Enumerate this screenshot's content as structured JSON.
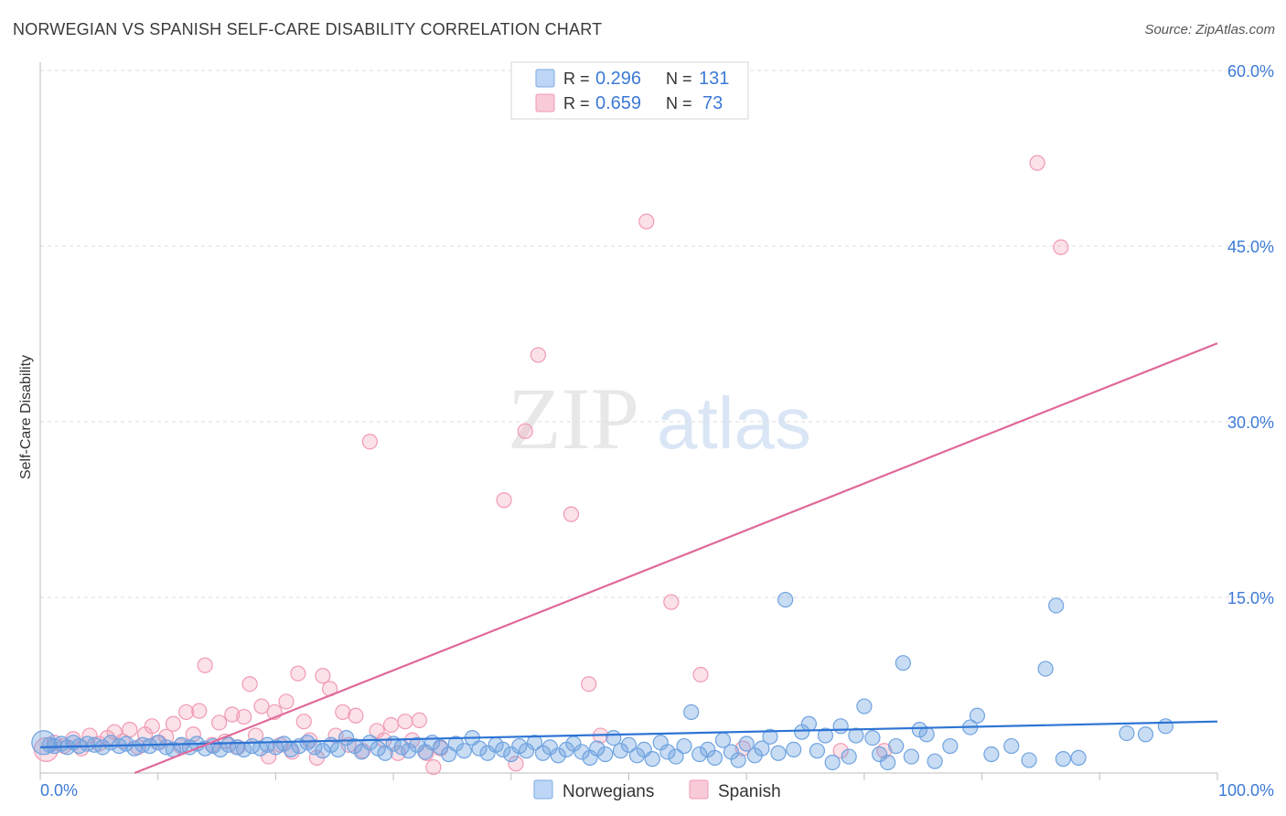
{
  "chart_data": {
    "type": "scatter",
    "title": "NORWEGIAN VS SPANISH SELF-CARE DISABILITY CORRELATION CHART",
    "source": "Source: ZipAtlas.com",
    "xlabel": "",
    "ylabel": "Self-Care Disability",
    "xlim": [
      0,
      100
    ],
    "ylim": [
      0,
      60
    ],
    "x_tick_labels": [
      "0.0%",
      "100.0%"
    ],
    "y_ticks": [
      15,
      30,
      45,
      60
    ],
    "y_tick_labels": [
      "15.0%",
      "30.0%",
      "45.0%",
      "60.0%"
    ],
    "watermark": {
      "zip": "ZIP",
      "atlas": "atlas"
    },
    "legend": [
      {
        "r_label": "R =",
        "r_value": "0.296",
        "n_label": "N =",
        "n_value": "131"
      },
      {
        "r_label": "R =",
        "r_value": "0.659",
        "n_label": "N =",
        "n_value": "73"
      }
    ],
    "colors": {
      "norwegians": "#6fa3e0",
      "spanish": "#f19ab3",
      "norwegians_line": "#2d74d4",
      "spanish_line": "#e0699a",
      "tick_text": "#3d7ad6"
    },
    "series": [
      {
        "name": "Norwegians",
        "trend": {
          "x": [
            0,
            100
          ],
          "y": [
            2.2,
            4.4
          ]
        },
        "points": [
          [
            0.3,
            2.6
          ],
          [
            0.8,
            2.4
          ],
          [
            1.2,
            2.3
          ],
          [
            1.8,
            2.5
          ],
          [
            2.3,
            2.2
          ],
          [
            2.8,
            2.6
          ],
          [
            3.3,
            2.3
          ],
          [
            4.0,
            2.5
          ],
          [
            4.6,
            2.4
          ],
          [
            5.3,
            2.2
          ],
          [
            6.0,
            2.6
          ],
          [
            6.7,
            2.3
          ],
          [
            7.3,
            2.5
          ],
          [
            8.0,
            2.1
          ],
          [
            8.7,
            2.4
          ],
          [
            9.3,
            2.3
          ],
          [
            10.0,
            2.6
          ],
          [
            10.7,
            2.2
          ],
          [
            11.3,
            2.0
          ],
          [
            12.0,
            2.4
          ],
          [
            12.7,
            2.2
          ],
          [
            13.3,
            2.5
          ],
          [
            14.0,
            2.1
          ],
          [
            14.7,
            2.3
          ],
          [
            15.3,
            2.0
          ],
          [
            16.0,
            2.4
          ],
          [
            16.7,
            2.2
          ],
          [
            17.3,
            2.0
          ],
          [
            18.0,
            2.3
          ],
          [
            18.7,
            2.1
          ],
          [
            19.3,
            2.4
          ],
          [
            20.0,
            2.2
          ],
          [
            20.7,
            2.5
          ],
          [
            21.3,
            2.0
          ],
          [
            22.0,
            2.3
          ],
          [
            22.7,
            2.6
          ],
          [
            23.3,
            2.2
          ],
          [
            24.0,
            1.9
          ],
          [
            24.7,
            2.4
          ],
          [
            25.3,
            2.0
          ],
          [
            26.0,
            3.0
          ],
          [
            26.7,
            2.3
          ],
          [
            27.3,
            1.8
          ],
          [
            28.0,
            2.6
          ],
          [
            28.7,
            2.1
          ],
          [
            29.3,
            1.7
          ],
          [
            30.0,
            2.5
          ],
          [
            30.7,
            2.2
          ],
          [
            31.3,
            1.9
          ],
          [
            32.0,
            2.4
          ],
          [
            32.7,
            1.8
          ],
          [
            33.3,
            2.6
          ],
          [
            34.0,
            2.2
          ],
          [
            34.7,
            1.6
          ],
          [
            35.3,
            2.5
          ],
          [
            36.0,
            1.9
          ],
          [
            36.7,
            3.0
          ],
          [
            37.3,
            2.1
          ],
          [
            38.0,
            1.7
          ],
          [
            38.7,
            2.4
          ],
          [
            39.3,
            2.0
          ],
          [
            40.0,
            1.6
          ],
          [
            40.7,
            2.3
          ],
          [
            41.3,
            1.9
          ],
          [
            42.0,
            2.6
          ],
          [
            42.7,
            1.7
          ],
          [
            43.3,
            2.2
          ],
          [
            44.0,
            1.5
          ],
          [
            44.7,
            2.0
          ],
          [
            45.3,
            2.5
          ],
          [
            46.0,
            1.8
          ],
          [
            46.7,
            1.3
          ],
          [
            47.3,
            2.1
          ],
          [
            48.0,
            1.6
          ],
          [
            48.7,
            3.0
          ],
          [
            49.3,
            1.9
          ],
          [
            50.0,
            2.4
          ],
          [
            50.7,
            1.5
          ],
          [
            51.3,
            2.0
          ],
          [
            52.0,
            1.2
          ],
          [
            52.7,
            2.6
          ],
          [
            53.3,
            1.8
          ],
          [
            54.0,
            1.4
          ],
          [
            54.7,
            2.3
          ],
          [
            55.3,
            5.2
          ],
          [
            56.0,
            1.6
          ],
          [
            56.7,
            2.0
          ],
          [
            57.3,
            1.3
          ],
          [
            58.0,
            2.8
          ],
          [
            58.7,
            1.8
          ],
          [
            59.3,
            1.1
          ],
          [
            60.0,
            2.5
          ],
          [
            60.7,
            1.5
          ],
          [
            61.3,
            2.1
          ],
          [
            62.0,
            3.1
          ],
          [
            62.7,
            1.7
          ],
          [
            63.3,
            14.8
          ],
          [
            64.0,
            2.0
          ],
          [
            64.7,
            3.5
          ],
          [
            65.3,
            4.2
          ],
          [
            66.0,
            1.9
          ],
          [
            66.7,
            3.2
          ],
          [
            67.3,
            0.9
          ],
          [
            68.0,
            4.0
          ],
          [
            68.7,
            1.4
          ],
          [
            69.3,
            3.2
          ],
          [
            70.0,
            5.7
          ],
          [
            70.7,
            3.0
          ],
          [
            71.3,
            1.6
          ],
          [
            72.0,
            0.9
          ],
          [
            72.7,
            2.3
          ],
          [
            73.3,
            9.4
          ],
          [
            74.0,
            1.4
          ],
          [
            74.7,
            3.7
          ],
          [
            75.3,
            3.3
          ],
          [
            76.0,
            1.0
          ],
          [
            77.3,
            2.3
          ],
          [
            79.0,
            3.9
          ],
          [
            79.6,
            4.9
          ],
          [
            80.8,
            1.6
          ],
          [
            82.5,
            2.3
          ],
          [
            84.0,
            1.1
          ],
          [
            85.4,
            8.9
          ],
          [
            86.3,
            14.3
          ],
          [
            86.9,
            1.2
          ],
          [
            88.2,
            1.3
          ],
          [
            92.3,
            3.4
          ],
          [
            93.9,
            3.3
          ],
          [
            95.6,
            4.0
          ]
        ]
      },
      {
        "name": "Spanish",
        "trend": {
          "x": [
            0,
            100
          ],
          "y": [
            -3.2,
            36.7
          ]
        },
        "points": [
          [
            0.5,
            2.0
          ],
          [
            1.2,
            2.6
          ],
          [
            2.0,
            2.3
          ],
          [
            2.8,
            2.9
          ],
          [
            3.5,
            2.1
          ],
          [
            4.2,
            3.2
          ],
          [
            5.0,
            2.5
          ],
          [
            5.7,
            3.0
          ],
          [
            6.3,
            3.5
          ],
          [
            7.0,
            2.7
          ],
          [
            7.6,
            3.7
          ],
          [
            8.3,
            2.2
          ],
          [
            8.9,
            3.3
          ],
          [
            9.5,
            4.0
          ],
          [
            10.1,
            2.6
          ],
          [
            10.7,
            3.1
          ],
          [
            11.3,
            4.2
          ],
          [
            11.9,
            2.3
          ],
          [
            12.4,
            5.2
          ],
          [
            13.0,
            3.3
          ],
          [
            13.5,
            5.3
          ],
          [
            14.0,
            9.2
          ],
          [
            14.6,
            2.4
          ],
          [
            15.2,
            4.3
          ],
          [
            15.7,
            2.7
          ],
          [
            16.3,
            5.0
          ],
          [
            16.8,
            2.2
          ],
          [
            17.3,
            4.8
          ],
          [
            17.8,
            7.6
          ],
          [
            18.3,
            3.2
          ],
          [
            18.8,
            5.7
          ],
          [
            19.4,
            1.4
          ],
          [
            19.9,
            5.2
          ],
          [
            20.4,
            2.4
          ],
          [
            20.9,
            6.1
          ],
          [
            21.4,
            1.8
          ],
          [
            21.9,
            8.5
          ],
          [
            22.4,
            4.4
          ],
          [
            22.9,
            2.8
          ],
          [
            23.5,
            1.3
          ],
          [
            24.0,
            8.3
          ],
          [
            24.6,
            7.2
          ],
          [
            25.1,
            3.2
          ],
          [
            25.7,
            5.2
          ],
          [
            26.2,
            2.4
          ],
          [
            26.8,
            4.9
          ],
          [
            27.4,
            1.9
          ],
          [
            28.0,
            28.3
          ],
          [
            28.6,
            3.6
          ],
          [
            29.2,
            2.8
          ],
          [
            29.8,
            4.1
          ],
          [
            30.4,
            1.7
          ],
          [
            31.0,
            4.4
          ],
          [
            31.6,
            2.8
          ],
          [
            32.2,
            4.5
          ],
          [
            32.8,
            1.7
          ],
          [
            33.4,
            0.5
          ],
          [
            34.0,
            2.1
          ],
          [
            39.4,
            23.3
          ],
          [
            40.4,
            0.8
          ],
          [
            41.2,
            29.2
          ],
          [
            42.3,
            35.7
          ],
          [
            45.1,
            22.1
          ],
          [
            46.6,
            7.6
          ],
          [
            47.6,
            3.2
          ],
          [
            51.5,
            47.1
          ],
          [
            53.6,
            14.6
          ],
          [
            56.1,
            8.4
          ],
          [
            59.7,
            2.1
          ],
          [
            68.0,
            1.9
          ],
          [
            71.7,
            1.9
          ],
          [
            84.7,
            52.1
          ],
          [
            86.7,
            44.9
          ]
        ]
      }
    ]
  }
}
